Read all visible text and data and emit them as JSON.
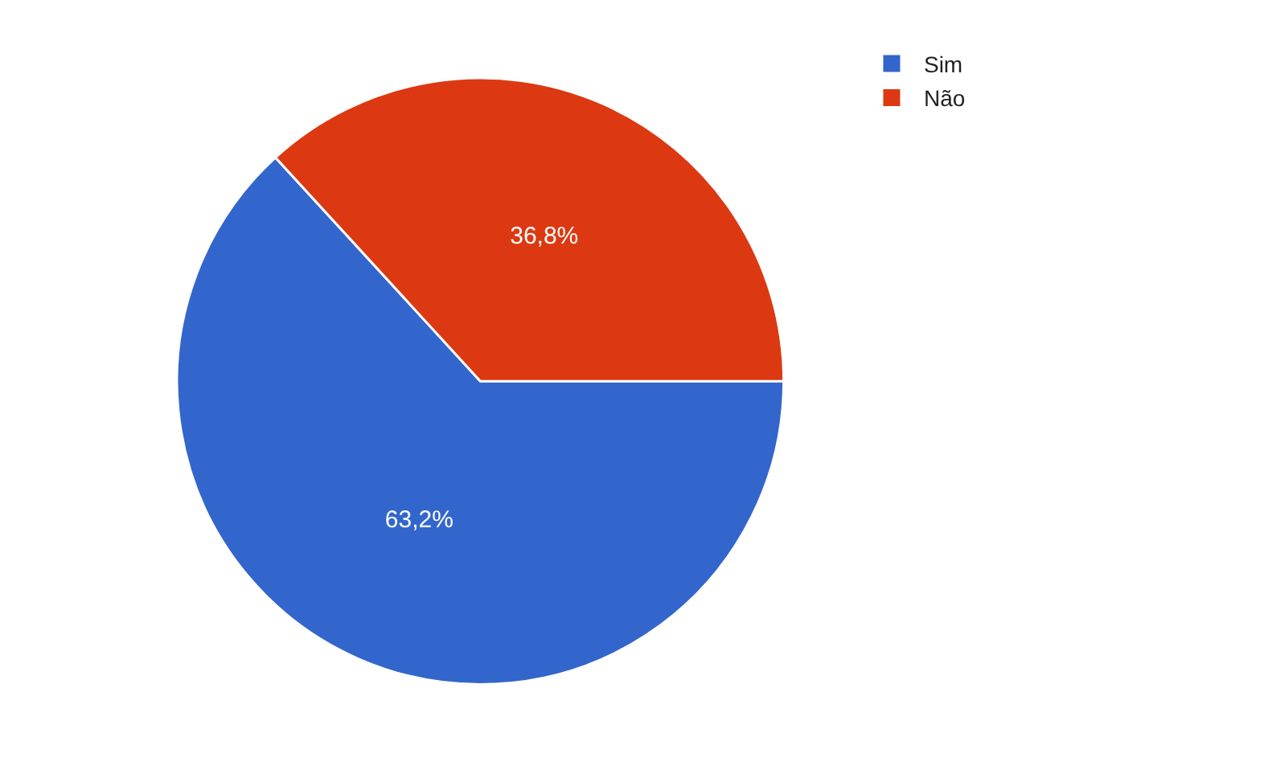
{
  "chart_data": {
    "type": "pie",
    "categories": [
      "Sim",
      "Não"
    ],
    "values": [
      63.2,
      36.8
    ],
    "colors": [
      "#3366cc",
      "#dc3912"
    ],
    "value_labels": [
      "63,2%",
      "36,8%"
    ],
    "legend": "top right"
  }
}
